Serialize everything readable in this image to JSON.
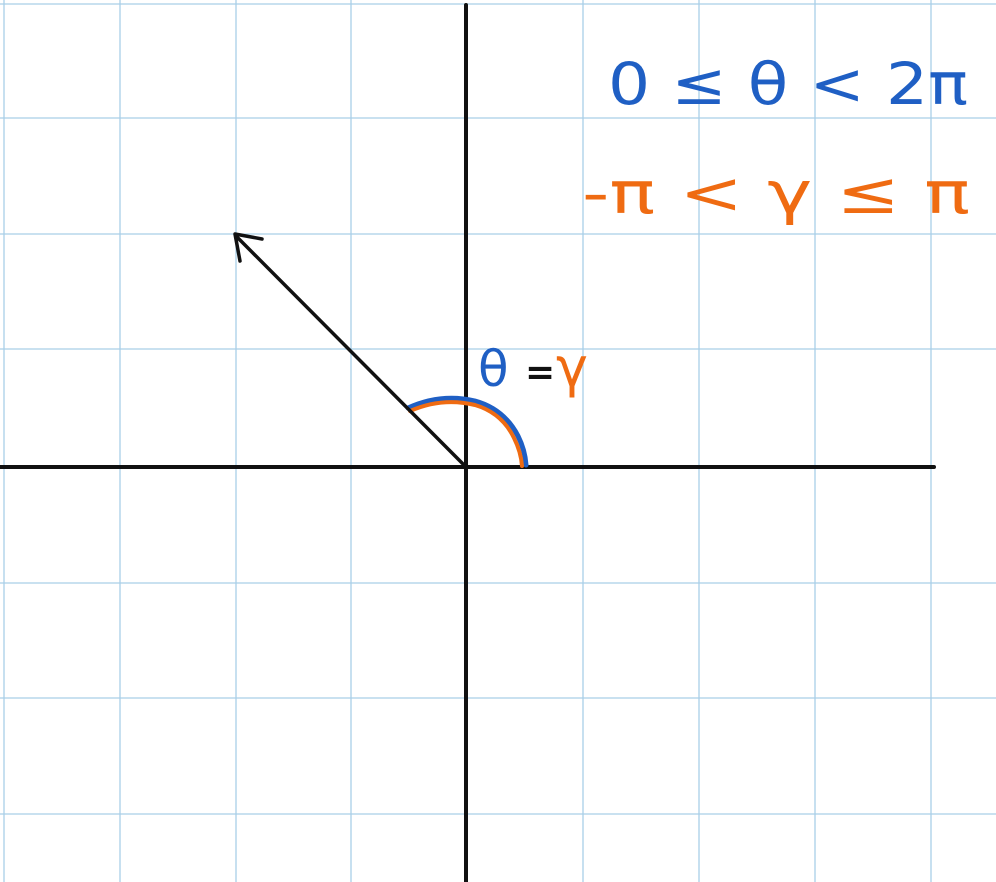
{
  "colors": {
    "background": "#ffffff",
    "grid": "#a9cfe8",
    "axis": "#111111",
    "vector": "#111111",
    "theta_blue": "#1f5fc4",
    "gamma_orange": "#ef6b12"
  },
  "annotations": {
    "theta_range": "0 ≤ θ < 2π",
    "gamma_range": "-π < γ ≤ π",
    "angle_label_theta": "θ",
    "angle_label_equals": "=",
    "angle_label_gamma": "γ"
  },
  "vector": {
    "direction_degrees": 135
  }
}
